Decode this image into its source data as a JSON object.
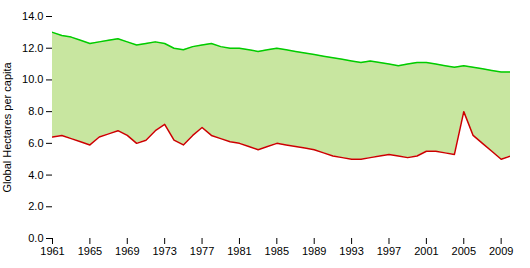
{
  "chart_data": {
    "type": "area",
    "ylabel": "Global Hectares per capita",
    "color": "#c8e6a0",
    "x": [
      1961,
      1962,
      1963,
      1964,
      1965,
      1966,
      1967,
      1968,
      1969,
      1970,
      1971,
      1972,
      1973,
      1974,
      1975,
      1976,
      1977,
      1978,
      1979,
      1980,
      1981,
      1982,
      1983,
      1984,
      1985,
      1986,
      1987,
      1988,
      1989,
      1990,
      1991,
      1992,
      1993,
      1994,
      1995,
      1996,
      1997,
      1998,
      1999,
      2000,
      2001,
      2002,
      2003,
      2004,
      2005,
      2006,
      2007,
      2008,
      2009,
      2010
    ],
    "series": [
      {
        "color": "#00cc00",
        "values": [
          13.0,
          12.8,
          12.7,
          12.5,
          12.3,
          12.4,
          12.5,
          12.6,
          12.4,
          12.2,
          12.3,
          12.4,
          12.3,
          12.0,
          11.9,
          12.1,
          12.2,
          12.3,
          12.1,
          12.0,
          12.0,
          11.9,
          11.8,
          11.9,
          12.0,
          11.9,
          11.8,
          11.7,
          11.6,
          11.5,
          11.4,
          11.3,
          11.2,
          11.1,
          11.2,
          11.1,
          11.0,
          10.9,
          11.0,
          11.1,
          11.1,
          11.0,
          10.9,
          10.8,
          10.9,
          10.8,
          10.7,
          10.6,
          10.5,
          10.5
        ]
      },
      {
        "color": "#cc0000",
        "values": [
          6.4,
          6.5,
          6.3,
          6.1,
          5.9,
          6.4,
          6.6,
          6.8,
          6.5,
          6.0,
          6.2,
          6.8,
          7.2,
          6.2,
          5.9,
          6.5,
          7.0,
          6.5,
          6.3,
          6.1,
          6.0,
          5.8,
          5.6,
          5.8,
          6.0,
          5.9,
          5.8,
          5.7,
          5.6,
          5.4,
          5.2,
          5.1,
          5.0,
          5.0,
          5.1,
          5.2,
          5.3,
          5.2,
          5.1,
          5.2,
          5.5,
          5.5,
          5.4,
          5.3,
          8.0,
          6.5,
          6.0,
          5.5,
          5.0,
          5.2
        ]
      }
    ],
    "xlim": [
      1961,
      2010
    ],
    "xticks": [
      1961,
      1965,
      1969,
      1973,
      1977,
      1981,
      1985,
      1989,
      1993,
      1997,
      2001,
      2005,
      2009
    ],
    "ylim": [
      0.0,
      14.0
    ],
    "yticks": [
      {
        "value": 0,
        "label": "0.0"
      },
      {
        "value": 2,
        "label": "2.0"
      },
      {
        "value": 4,
        "label": "4.0"
      },
      {
        "value": 6,
        "label": "6.0"
      },
      {
        "value": 8,
        "label": "8.0"
      },
      {
        "value": 10,
        "label": "10.0"
      },
      {
        "value": 12,
        "label": "12.0"
      },
      {
        "value": 14,
        "label": "14.0"
      }
    ],
    "grid": false
  }
}
